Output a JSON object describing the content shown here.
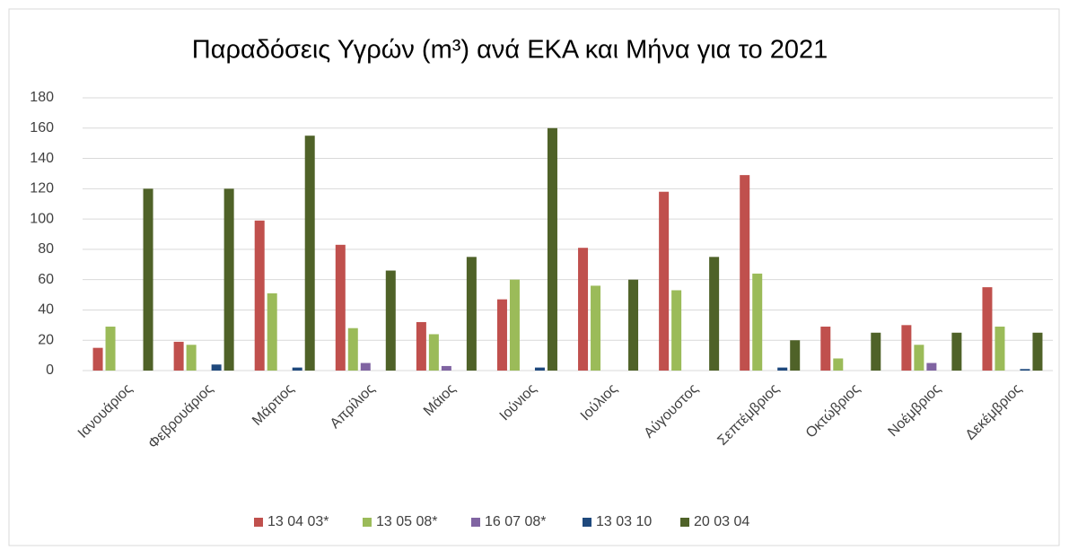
{
  "chart_data": {
    "type": "bar",
    "title": "Παραδόσεις Υγρών (m³) ανά ΕΚΑ και Μήνα για το 2021",
    "categories": [
      "Ιανουάριος",
      "Φεβρουάριος",
      "Μάρτιος",
      "Απρίλιος",
      "Μάιος",
      "Ιούνιος",
      "Ιούλιος",
      "Αύγουστος",
      "Σεπτέμβριος",
      "Οκτώβριος",
      "Νοέμβριος",
      "Δεκέμβριος"
    ],
    "series": [
      {
        "name": "13 04 03*",
        "color": "#c0504d",
        "values": [
          15,
          19,
          99,
          83,
          32,
          47,
          81,
          118,
          129,
          29,
          30,
          55
        ]
      },
      {
        "name": "13 05 08*",
        "color": "#9bbb59",
        "values": [
          29,
          17,
          51,
          28,
          24,
          60,
          56,
          53,
          64,
          8,
          17,
          29
        ]
      },
      {
        "name": "16 07 08*",
        "color": "#8064a2",
        "values": [
          null,
          null,
          null,
          5,
          3,
          null,
          null,
          null,
          null,
          null,
          5,
          null
        ]
      },
      {
        "name": "13 03 10",
        "color": "#1f497d",
        "values": [
          null,
          4,
          2,
          null,
          null,
          2,
          null,
          null,
          2,
          null,
          null,
          1
        ]
      },
      {
        "name": "20 03 04",
        "color": "#4f6228",
        "values": [
          120,
          120,
          155,
          66,
          75,
          160,
          60,
          75,
          20,
          25,
          25,
          25
        ]
      }
    ],
    "ylim": [
      0,
      180
    ],
    "yticks": [
      0,
      20,
      40,
      60,
      80,
      100,
      120,
      140,
      160,
      180
    ],
    "grid": true,
    "legend": "bottom"
  }
}
